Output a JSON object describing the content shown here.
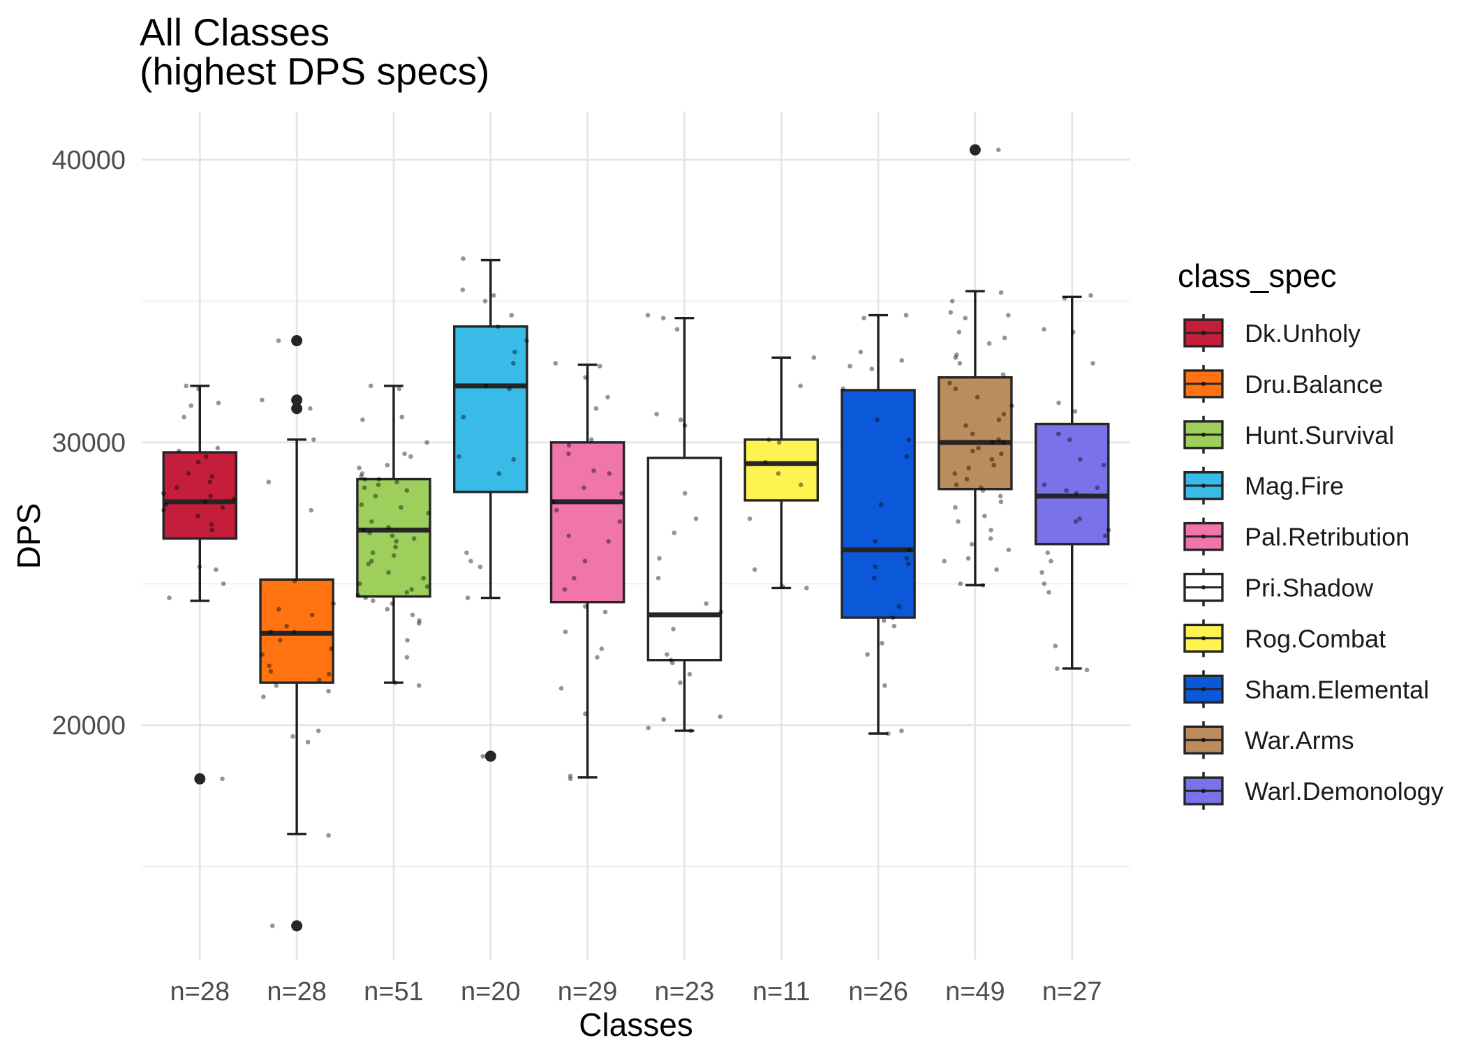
{
  "chart_data": {
    "type": "boxplot",
    "title": [
      "All Classes",
      "(highest DPS specs)"
    ],
    "xlabel": "Classes",
    "ylabel": "DPS",
    "ylim": [
      11700,
      41700
    ],
    "yticks": [
      20000,
      30000,
      40000
    ],
    "y_minor_ticks": [
      15000,
      25000,
      35000
    ],
    "grid": true,
    "legend": {
      "title": "class_spec",
      "position": "right"
    },
    "categories": [
      "n=28",
      "n=28",
      "n=51",
      "n=20",
      "n=29",
      "n=23",
      "n=11",
      "n=26",
      "n=49",
      "n=27"
    ],
    "series": [
      {
        "name": "Dk.Unholy",
        "color": "#C41E3A",
        "whisker_low": 24400,
        "q1": 26600,
        "median": 27900,
        "q3": 29650,
        "whisker_high": 32000,
        "outliers": [
          18100
        ],
        "points": [
          32000,
          31900,
          31400,
          31300,
          30900,
          29800,
          29700,
          29500,
          29300,
          28900,
          28800,
          28600,
          28400,
          28200,
          28100,
          28000,
          27900,
          27800,
          27700,
          27600,
          27400,
          27100,
          26900,
          25600,
          25500,
          25000,
          24500,
          18100
        ]
      },
      {
        "name": "Dru.Balance",
        "color": "#FF7410",
        "whisker_low": 16150,
        "q1": 21500,
        "median": 23250,
        "q3": 25150,
        "whisker_high": 30100,
        "outliers": [
          33600,
          31500,
          31200,
          12900
        ],
        "points": [
          33600,
          31500,
          31200,
          30100,
          28600,
          27600,
          25100,
          24300,
          24100,
          23900,
          23500,
          23300,
          23300,
          23000,
          22700,
          22500,
          22100,
          21900,
          21800,
          21600,
          21400,
          21200,
          21000,
          19800,
          19600,
          19400,
          16100,
          12900
        ]
      },
      {
        "name": "Hunt.Survival",
        "color": "#9ECF5C",
        "whisker_low": 21500,
        "q1": 24550,
        "median": 26900,
        "q3": 28700,
        "whisker_high": 32000,
        "outliers": [],
        "points": [
          32000,
          31900,
          30900,
          30800,
          30000,
          29600,
          29500,
          29200,
          29100,
          28900,
          28800,
          28700,
          28700,
          28600,
          28500,
          28400,
          28300,
          28100,
          27800,
          27700,
          27500,
          27200,
          27000,
          26900,
          26800,
          26700,
          26600,
          26500,
          26300,
          26100,
          26000,
          25800,
          25700,
          25400,
          25200,
          25000,
          24900,
          24800,
          24700,
          24600,
          24500,
          24400,
          24300,
          24100,
          23900,
          23700,
          23600,
          23000,
          22400,
          21500,
          21400
        ]
      },
      {
        "name": "Mag.Fire",
        "color": "#38BBE7",
        "whisker_low": 24500,
        "q1": 28250,
        "median": 32000,
        "q3": 34100,
        "whisker_high": 36450,
        "outliers": [
          18900
        ],
        "points": [
          36500,
          35400,
          35200,
          35000,
          34500,
          34100,
          33600,
          33200,
          32800,
          32000,
          31900,
          30900,
          29500,
          29400,
          28900,
          26100,
          25800,
          25600,
          24500,
          18900
        ]
      },
      {
        "name": "Pal.Retribution",
        "color": "#F075AA",
        "whisker_low": 18150,
        "q1": 24350,
        "median": 27900,
        "q3": 30000,
        "whisker_high": 32750,
        "outliers": [],
        "points": [
          32800,
          32700,
          32300,
          31600,
          31200,
          30100,
          29900,
          29600,
          29000,
          28900,
          28400,
          28200,
          27900,
          27600,
          27200,
          26700,
          26500,
          25800,
          25200,
          24800,
          24200,
          24000,
          23300,
          22700,
          22400,
          21300,
          20400,
          18200,
          18100
        ]
      },
      {
        "name": "Pri.Shadow",
        "color": "#FFFFFF",
        "whisker_low": 19800,
        "q1": 22300,
        "median": 23900,
        "q3": 29450,
        "whisker_high": 34400,
        "outliers": [],
        "points": [
          34500,
          34400,
          34000,
          31000,
          30800,
          30600,
          28200,
          27300,
          26800,
          25900,
          25200,
          24300,
          24000,
          23400,
          22500,
          22300,
          22200,
          21800,
          21500,
          20300,
          20200,
          19900,
          19800
        ]
      },
      {
        "name": "Rog.Combat",
        "color": "#FFF352",
        "whisker_low": 24850,
        "q1": 27950,
        "median": 29250,
        "q3": 30100,
        "whisker_high": 33000,
        "outliers": [],
        "points": [
          33000,
          32000,
          30100,
          30000,
          29300,
          28900,
          28500,
          27300,
          25500,
          24900,
          24850
        ]
      },
      {
        "name": "Sham.Elemental",
        "color": "#0B58D8",
        "whisker_low": 19700,
        "q1": 23800,
        "median": 26200,
        "q3": 31850,
        "whisker_high": 34500,
        "outliers": [],
        "points": [
          34500,
          34400,
          33200,
          32900,
          32700,
          32600,
          31900,
          30800,
          30100,
          29500,
          27800,
          26500,
          26200,
          25900,
          25700,
          25600,
          25200,
          24200,
          23800,
          23700,
          23500,
          22900,
          22500,
          21400,
          19800,
          19700
        ]
      },
      {
        "name": "War.Arms",
        "color": "#BB8C5C",
        "whisker_low": 24950,
        "q1": 28350,
        "median": 30000,
        "q3": 32300,
        "whisker_high": 35350,
        "outliers": [
          40350
        ],
        "points": [
          40350,
          35300,
          35000,
          34600,
          34500,
          34400,
          33900,
          33700,
          33500,
          33100,
          33000,
          32800,
          32400,
          32100,
          31900,
          31600,
          31300,
          31000,
          30800,
          30600,
          30300,
          30100,
          30000,
          30000,
          29800,
          29700,
          29600,
          29400,
          29200,
          29100,
          28900,
          28700,
          28500,
          28400,
          28300,
          28100,
          27900,
          27700,
          27400,
          27200,
          26900,
          26600,
          26400,
          26200,
          25900,
          25800,
          25500,
          25000,
          24950
        ]
      },
      {
        "name": "Warl.Demonology",
        "color": "#7A72EA",
        "whisker_low": 22000,
        "q1": 26400,
        "median": 28100,
        "q3": 30650,
        "whisker_high": 35150,
        "outliers": [],
        "points": [
          35200,
          35100,
          34000,
          33900,
          32800,
          31400,
          31100,
          30300,
          30100,
          29400,
          29200,
          28500,
          28400,
          28300,
          28200,
          27300,
          27200,
          26900,
          26700,
          26100,
          25800,
          25400,
          25000,
          24700,
          22800,
          22000,
          21950
        ]
      }
    ]
  }
}
